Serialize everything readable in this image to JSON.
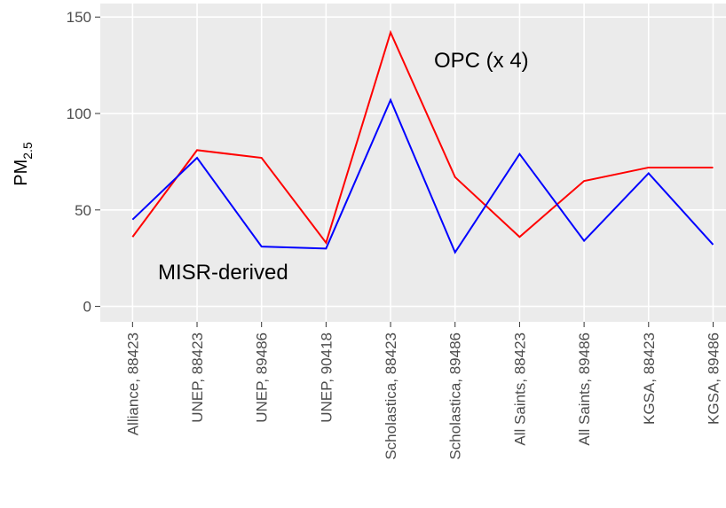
{
  "chart_data": {
    "type": "line",
    "y_label": "PM",
    "y_label_subscript": "2.5",
    "categories": [
      "Alliance, 88423",
      "UNEP, 88423",
      "UNEP, 89486",
      "UNEP, 90418",
      "Scholastica, 88423",
      "Scholastica, 89486",
      "All Saints, 88423",
      "All Saints, 89486",
      "KGSA, 88423",
      "KGSA, 89486"
    ],
    "series": [
      {
        "name": "OPC (x 4)",
        "color": "#ff0000",
        "values": [
          36,
          81,
          77,
          33,
          142,
          67,
          36,
          65,
          72,
          72
        ]
      },
      {
        "name": "MISR-derived",
        "color": "#0000ff",
        "values": [
          45,
          77,
          31,
          30,
          107,
          28,
          79,
          34,
          69,
          32
        ]
      }
    ],
    "ylim": [
      -8,
      157
    ],
    "yticks": [
      0,
      50,
      100,
      150
    ],
    "grid": true
  }
}
